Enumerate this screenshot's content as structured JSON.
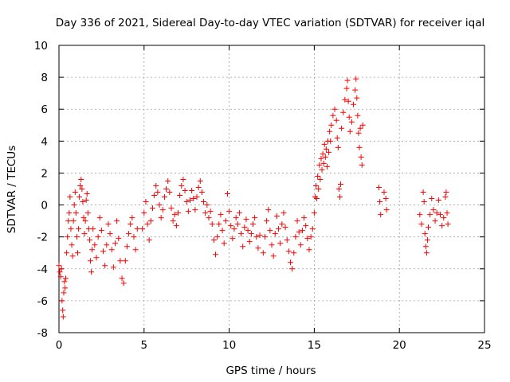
{
  "chart_data": {
    "type": "scatter",
    "title": "Day 336 of 2021, Sidereal Day-to-day VTEC variation (SDTVAR) for receiver iqal",
    "xlabel": "GPS time / hours",
    "ylabel": "SDTVAR / TECUs",
    "xlim": [
      0,
      25
    ],
    "ylim": [
      -8,
      10
    ],
    "x_ticks": [
      0,
      5,
      10,
      15,
      20,
      25
    ],
    "y_ticks": [
      -8,
      -6,
      -4,
      -2,
      0,
      2,
      4,
      6,
      8,
      10
    ],
    "grid": true,
    "marker": "+",
    "color": "#ff0000",
    "series": [
      {
        "name": "SDTVAR",
        "points": [
          [
            0.0,
            -3.8
          ],
          [
            0.05,
            -4.2
          ],
          [
            0.1,
            -4.5
          ],
          [
            0.15,
            -4.0
          ],
          [
            0.18,
            -6.0
          ],
          [
            0.22,
            -6.6
          ],
          [
            0.25,
            -7.0
          ],
          [
            0.28,
            -5.5
          ],
          [
            0.32,
            -4.8
          ],
          [
            0.36,
            -5.2
          ],
          [
            0.4,
            -4.6
          ],
          [
            0.45,
            -3.0
          ],
          [
            0.5,
            -2.0
          ],
          [
            0.55,
            -1.0
          ],
          [
            0.6,
            -0.5
          ],
          [
            0.65,
            0.5
          ],
          [
            0.7,
            -1.5
          ],
          [
            0.75,
            -2.5
          ],
          [
            0.8,
            -3.2
          ],
          [
            0.85,
            -1.0
          ],
          [
            0.9,
            0.0
          ],
          [
            0.95,
            0.8
          ],
          [
            1.0,
            -0.5
          ],
          [
            1.05,
            -2.0
          ],
          [
            1.1,
            -3.0
          ],
          [
            1.15,
            -1.5
          ],
          [
            1.2,
            0.5
          ],
          [
            1.25,
            1.2
          ],
          [
            1.3,
            1.6
          ],
          [
            1.35,
            1.0
          ],
          [
            1.4,
            0.2
          ],
          [
            1.45,
            -0.8
          ],
          [
            1.5,
            -1.8
          ],
          [
            1.55,
            -1.0
          ],
          [
            1.6,
            0.3
          ],
          [
            1.65,
            0.7
          ],
          [
            1.7,
            -0.5
          ],
          [
            1.75,
            -1.5
          ],
          [
            1.8,
            -2.2
          ],
          [
            1.85,
            -3.5
          ],
          [
            1.9,
            -4.2
          ],
          [
            1.95,
            -2.8
          ],
          [
            2.0,
            -1.5
          ],
          [
            2.1,
            -2.5
          ],
          [
            2.2,
            -3.3
          ],
          [
            2.3,
            -2.0
          ],
          [
            2.4,
            -0.8
          ],
          [
            2.5,
            -1.6
          ],
          [
            2.6,
            -2.9
          ],
          [
            2.7,
            -3.8
          ],
          [
            2.8,
            -2.5
          ],
          [
            2.9,
            -1.2
          ],
          [
            3.0,
            -1.8
          ],
          [
            3.1,
            -2.8
          ],
          [
            3.2,
            -3.9
          ],
          [
            3.3,
            -2.4
          ],
          [
            3.4,
            -1.0
          ],
          [
            3.5,
            -2.1
          ],
          [
            3.6,
            -3.5
          ],
          [
            3.7,
            -4.6
          ],
          [
            3.8,
            -4.9
          ],
          [
            3.9,
            -3.5
          ],
          [
            4.0,
            -2.6
          ],
          [
            4.1,
            -1.8
          ],
          [
            4.2,
            -1.2
          ],
          [
            4.3,
            -0.8
          ],
          [
            4.4,
            -2.0
          ],
          [
            4.5,
            -2.8
          ],
          [
            4.6,
            -1.5
          ],
          [
            4.9,
            -1.5
          ],
          [
            5.0,
            -0.5
          ],
          [
            5.1,
            0.2
          ],
          [
            5.2,
            -1.2
          ],
          [
            5.3,
            -2.2
          ],
          [
            5.4,
            -1.0
          ],
          [
            5.5,
            -0.2
          ],
          [
            5.6,
            0.6
          ],
          [
            5.7,
            1.2
          ],
          [
            5.8,
            0.8
          ],
          [
            5.9,
            0.0
          ],
          [
            6.0,
            -0.8
          ],
          [
            6.1,
            -0.3
          ],
          [
            6.2,
            0.5
          ],
          [
            6.3,
            1.0
          ],
          [
            6.4,
            1.5
          ],
          [
            6.5,
            0.8
          ],
          [
            6.6,
            -0.2
          ],
          [
            6.7,
            -1.0
          ],
          [
            6.8,
            -0.6
          ],
          [
            6.9,
            -1.3
          ],
          [
            7.0,
            -0.5
          ],
          [
            7.1,
            0.6
          ],
          [
            7.2,
            1.2
          ],
          [
            7.3,
            1.6
          ],
          [
            7.4,
            0.9
          ],
          [
            7.5,
            0.2
          ],
          [
            7.6,
            -0.4
          ],
          [
            7.7,
            0.3
          ],
          [
            7.8,
            0.9
          ],
          [
            7.9,
            0.4
          ],
          [
            8.0,
            -0.3
          ],
          [
            8.1,
            0.5
          ],
          [
            8.2,
            1.1
          ],
          [
            8.3,
            1.5
          ],
          [
            8.4,
            0.8
          ],
          [
            8.5,
            0.2
          ],
          [
            8.6,
            -0.5
          ],
          [
            8.7,
            0.0
          ],
          [
            8.8,
            -0.8
          ],
          [
            8.9,
            -0.4
          ],
          [
            9.0,
            -1.2
          ],
          [
            9.1,
            -2.2
          ],
          [
            9.2,
            -3.1
          ],
          [
            9.3,
            -2.0
          ],
          [
            9.4,
            -1.2
          ],
          [
            9.5,
            -0.6
          ],
          [
            9.6,
            -1.6
          ],
          [
            9.7,
            -2.4
          ],
          [
            9.8,
            -1.0
          ],
          [
            9.9,
            0.7
          ],
          [
            10.0,
            -0.4
          ],
          [
            10.1,
            -1.3
          ],
          [
            10.2,
            -2.1
          ],
          [
            10.3,
            -1.5
          ],
          [
            10.4,
            -0.8
          ],
          [
            10.5,
            -1.2
          ],
          [
            10.6,
            -0.5
          ],
          [
            10.7,
            -1.8
          ],
          [
            10.8,
            -2.6
          ],
          [
            10.9,
            -1.4
          ],
          [
            11.0,
            -0.9
          ],
          [
            11.1,
            -1.6
          ],
          [
            11.2,
            -2.3
          ],
          [
            11.3,
            -1.8
          ],
          [
            11.4,
            -1.2
          ],
          [
            11.5,
            -0.8
          ],
          [
            11.6,
            -2.0
          ],
          [
            11.7,
            -2.7
          ],
          [
            11.8,
            -1.9
          ],
          [
            12.0,
            -3.0
          ],
          [
            12.1,
            -2.0
          ],
          [
            12.2,
            -1.0
          ],
          [
            12.3,
            -0.3
          ],
          [
            12.4,
            -1.6
          ],
          [
            12.5,
            -2.5
          ],
          [
            12.6,
            -3.2
          ],
          [
            12.7,
            -1.8
          ],
          [
            12.8,
            -0.7
          ],
          [
            12.9,
            -1.5
          ],
          [
            13.0,
            -2.4
          ],
          [
            13.1,
            -1.2
          ],
          [
            13.2,
            -0.5
          ],
          [
            13.3,
            -1.4
          ],
          [
            13.4,
            -2.2
          ],
          [
            13.5,
            -2.9
          ],
          [
            13.6,
            -3.6
          ],
          [
            13.7,
            -4.0
          ],
          [
            13.8,
            -3.0
          ],
          [
            13.9,
            -2.0
          ],
          [
            14.0,
            -1.0
          ],
          [
            14.1,
            -1.7
          ],
          [
            14.2,
            -2.5
          ],
          [
            14.3,
            -1.6
          ],
          [
            14.4,
            -0.8
          ],
          [
            14.5,
            -1.3
          ],
          [
            14.6,
            -2.1
          ],
          [
            14.7,
            -2.8
          ],
          [
            14.8,
            -2.0
          ],
          [
            14.9,
            -1.5
          ],
          [
            15.0,
            -0.5
          ],
          [
            15.05,
            0.5
          ],
          [
            15.1,
            1.2
          ],
          [
            15.15,
            0.4
          ],
          [
            15.2,
            1.8
          ],
          [
            15.25,
            1.0
          ],
          [
            15.3,
            2.5
          ],
          [
            15.35,
            1.6
          ],
          [
            15.4,
            2.9
          ],
          [
            15.45,
            2.2
          ],
          [
            15.5,
            3.2
          ],
          [
            15.55,
            2.6
          ],
          [
            15.6,
            3.8
          ],
          [
            15.65,
            3.0
          ],
          [
            15.7,
            3.5
          ],
          [
            15.75,
            2.4
          ],
          [
            15.8,
            4.0
          ],
          [
            15.85,
            3.3
          ],
          [
            15.9,
            4.6
          ],
          [
            15.95,
            4.0
          ],
          [
            16.0,
            5.0
          ],
          [
            16.1,
            5.6
          ],
          [
            16.2,
            6.0
          ],
          [
            16.3,
            5.3
          ],
          [
            16.35,
            4.2
          ],
          [
            16.4,
            3.6
          ],
          [
            16.45,
            1.0
          ],
          [
            16.5,
            0.5
          ],
          [
            16.55,
            1.3
          ],
          [
            16.6,
            4.8
          ],
          [
            16.7,
            5.8
          ],
          [
            16.8,
            6.6
          ],
          [
            16.9,
            7.3
          ],
          [
            16.95,
            7.8
          ],
          [
            17.0,
            6.5
          ],
          [
            17.05,
            5.5
          ],
          [
            17.1,
            4.6
          ],
          [
            17.2,
            5.2
          ],
          [
            17.3,
            6.3
          ],
          [
            17.4,
            7.2
          ],
          [
            17.45,
            7.9
          ],
          [
            17.5,
            6.7
          ],
          [
            17.55,
            5.6
          ],
          [
            17.6,
            4.5
          ],
          [
            17.65,
            3.6
          ],
          [
            17.7,
            4.8
          ],
          [
            17.75,
            3.0
          ],
          [
            17.8,
            2.5
          ],
          [
            17.85,
            5.0
          ],
          [
            18.8,
            1.1
          ],
          [
            18.85,
            0.2
          ],
          [
            18.9,
            -0.6
          ],
          [
            19.1,
            0.8
          ],
          [
            19.2,
            0.4
          ],
          [
            19.25,
            -0.3
          ],
          [
            21.2,
            -0.6
          ],
          [
            21.3,
            -1.2
          ],
          [
            21.4,
            0.8
          ],
          [
            21.45,
            0.2
          ],
          [
            21.5,
            -1.8
          ],
          [
            21.55,
            -2.6
          ],
          [
            21.6,
            -3.0
          ],
          [
            21.65,
            -2.2
          ],
          [
            21.7,
            -1.4
          ],
          [
            21.8,
            -0.6
          ],
          [
            21.9,
            0.4
          ],
          [
            22.0,
            -0.3
          ],
          [
            22.1,
            -1.0
          ],
          [
            22.2,
            -0.5
          ],
          [
            22.3,
            0.3
          ],
          [
            22.4,
            -0.6
          ],
          [
            22.5,
            -1.3
          ],
          [
            22.6,
            -0.8
          ],
          [
            22.7,
            0.5
          ],
          [
            22.75,
            0.8
          ],
          [
            22.8,
            -0.5
          ],
          [
            22.85,
            -1.2
          ]
        ]
      }
    ]
  }
}
